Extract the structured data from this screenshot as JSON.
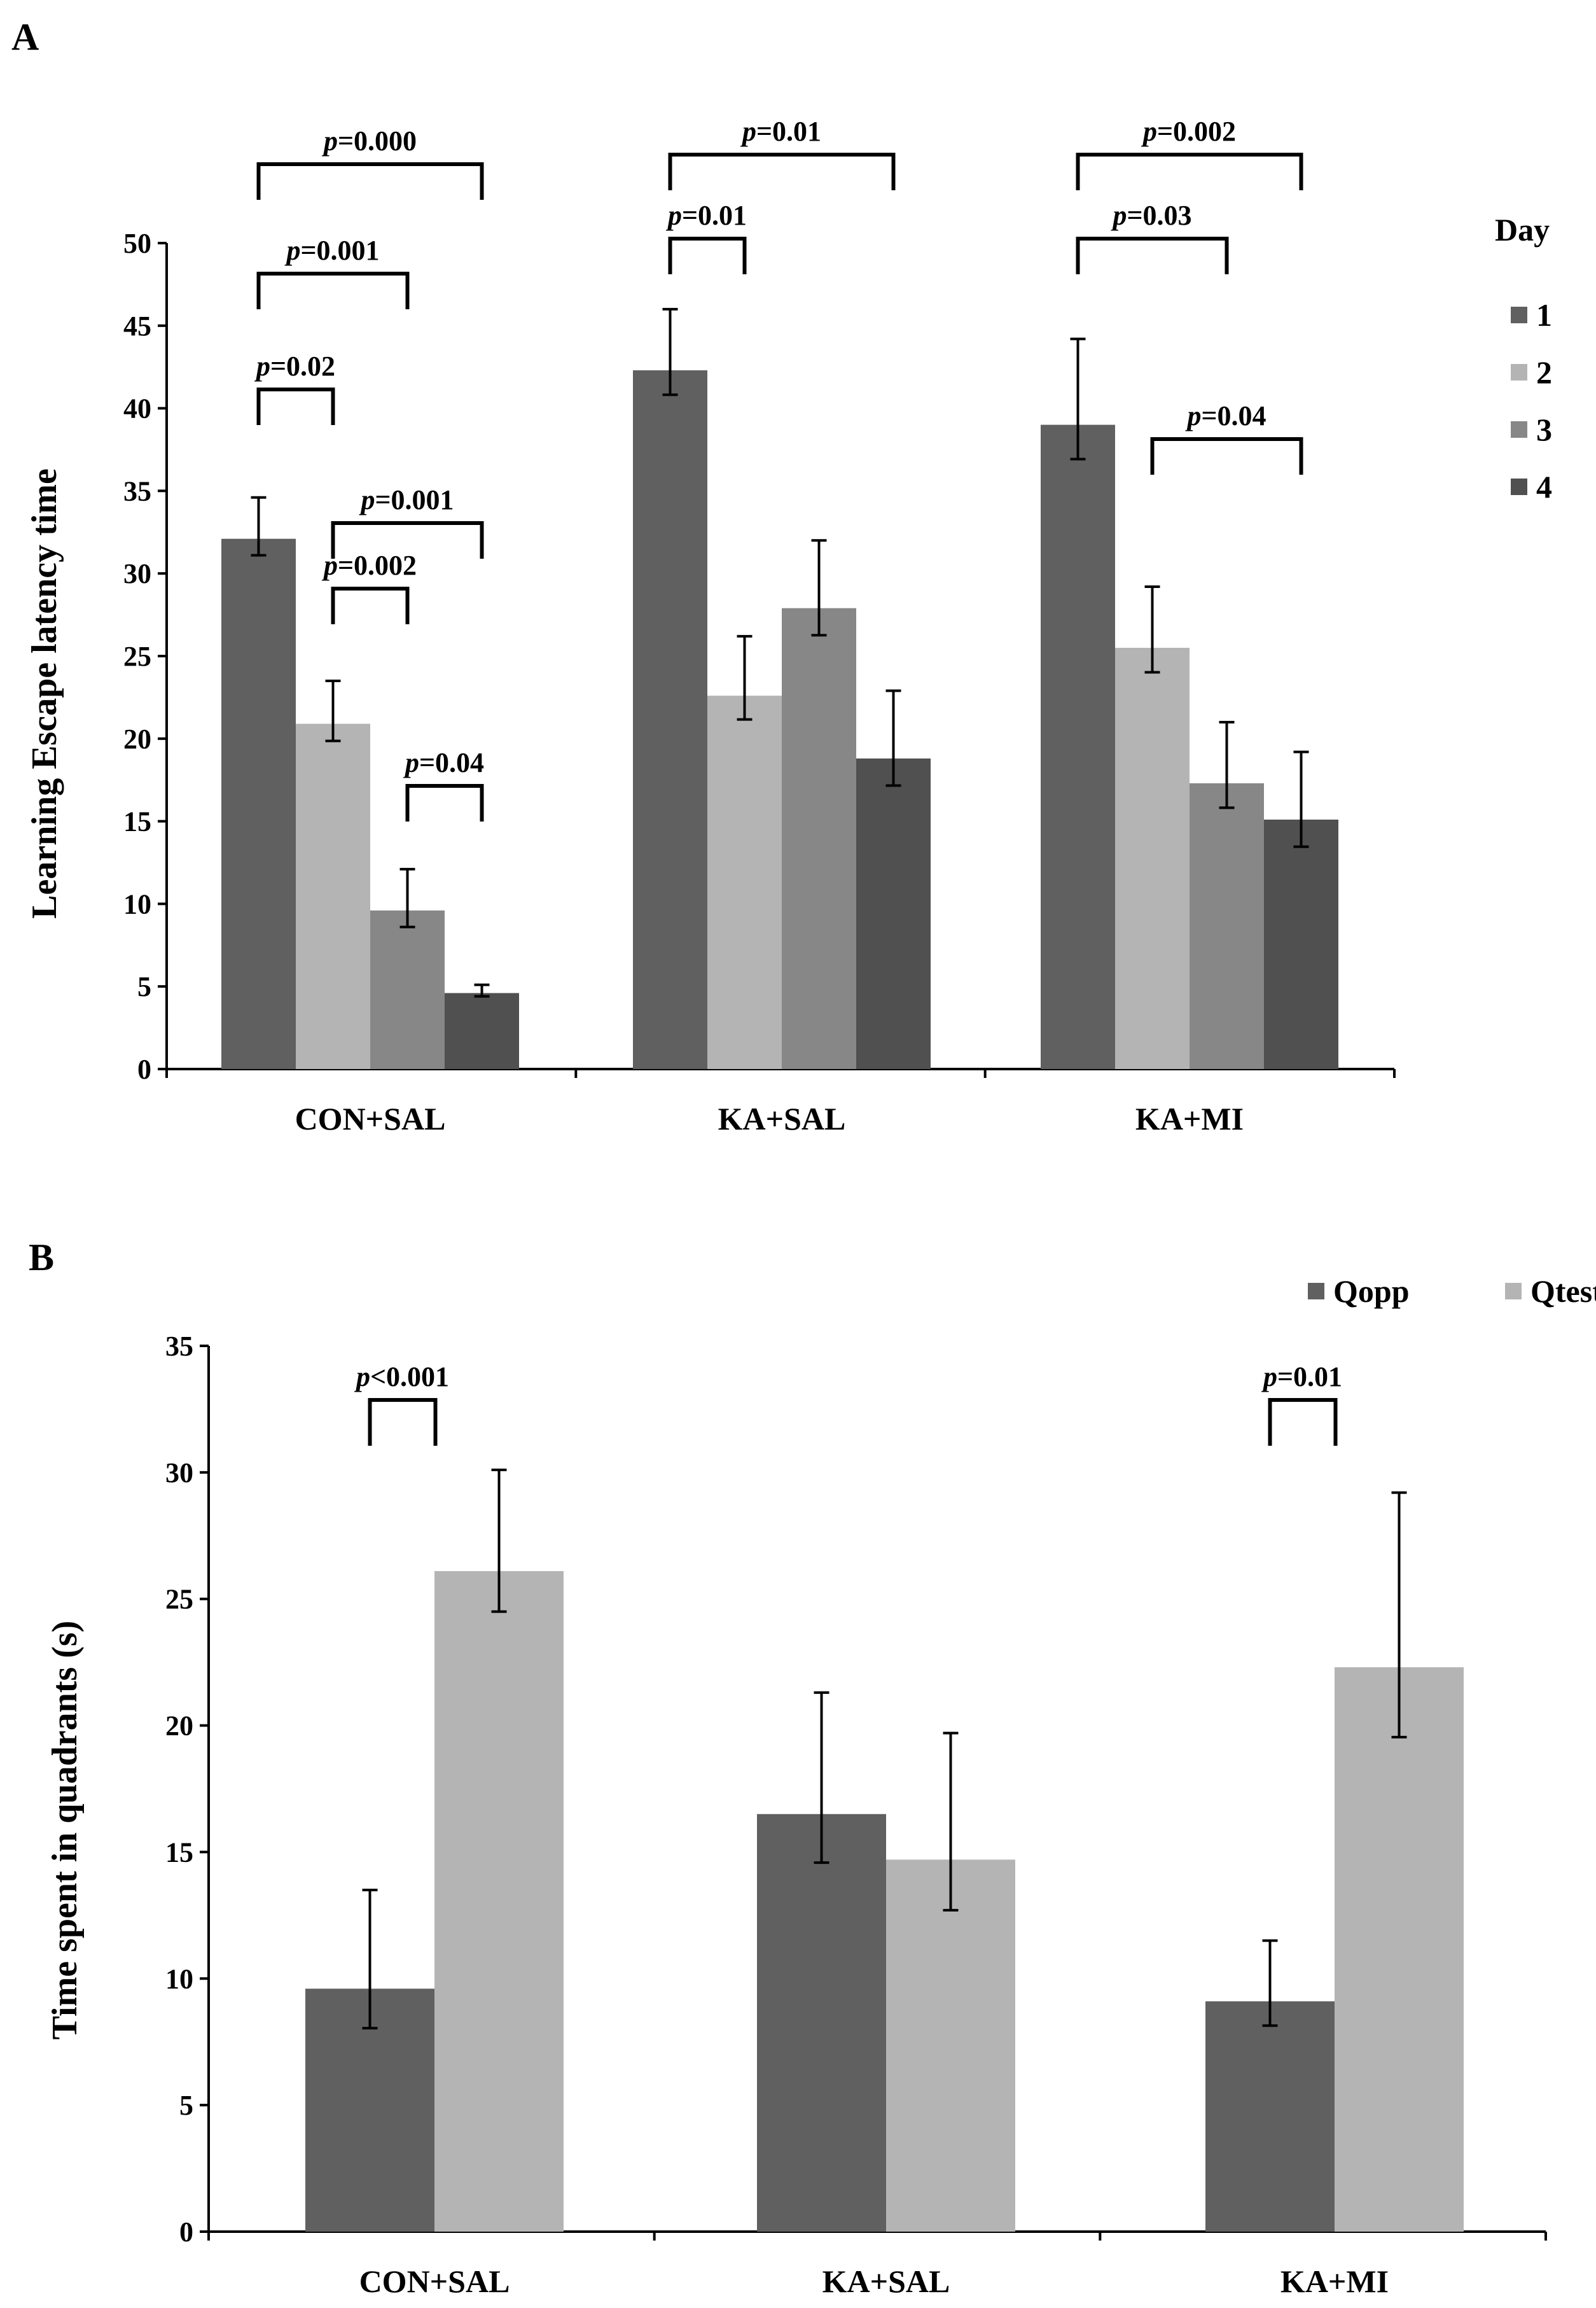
{
  "chart_data": [
    {
      "panel": "A",
      "type": "bar",
      "ylabel": "Learning Escape latency time",
      "xlabel": "",
      "ylim": [
        0,
        50
      ],
      "yticks": [
        0,
        5,
        10,
        15,
        20,
        25,
        30,
        35,
        40,
        45,
        50
      ],
      "categories": [
        "CON+SAL",
        "KA+SAL",
        "KA+MI"
      ],
      "legend_title": "Day",
      "legend_position": "right",
      "series": [
        {
          "name": "1",
          "color": "#606060",
          "values": [
            32.1,
            42.3,
            39.0
          ],
          "errors": [
            2.5,
            3.7,
            5.2
          ]
        },
        {
          "name": "2",
          "color": "#b4b4b4",
          "values": [
            20.9,
            22.6,
            25.5
          ],
          "errors": [
            2.6,
            3.6,
            3.7
          ]
        },
        {
          "name": "3",
          "color": "#878787",
          "values": [
            9.6,
            27.9,
            17.3
          ],
          "errors": [
            2.5,
            4.1,
            3.7
          ]
        },
        {
          "name": "4",
          "color": "#505050",
          "values": [
            4.6,
            18.8,
            15.1
          ],
          "errors": [
            0.5,
            4.1,
            4.1
          ]
        }
      ],
      "annotations": [
        {
          "label_prefix": "p",
          "label_value": "=0.000",
          "category": 0,
          "from_series": 0,
          "to_series": 3
        },
        {
          "label_prefix": "p",
          "label_value": "=0.001",
          "category": 0,
          "from_series": 0,
          "to_series": 2
        },
        {
          "label_prefix": "p",
          "label_value": "=0.02",
          "category": 0,
          "from_series": 0,
          "to_series": 1
        },
        {
          "label_prefix": "p",
          "label_value": "=0.001",
          "category": 0,
          "from_series": 1,
          "to_series": 3
        },
        {
          "label_prefix": "p",
          "label_value": "=0.002",
          "category": 0,
          "from_series": 1,
          "to_series": 2
        },
        {
          "label_prefix": "p",
          "label_value": "=0.04",
          "category": 0,
          "from_series": 2,
          "to_series": 3
        },
        {
          "label_prefix": "p",
          "label_value": "=0.01",
          "category": 1,
          "from_series": 0,
          "to_series": 3
        },
        {
          "label_prefix": "p",
          "label_value": "=0.01",
          "category": 1,
          "from_series": 0,
          "to_series": 1
        },
        {
          "label_prefix": "p",
          "label_value": "=0.002",
          "category": 2,
          "from_series": 0,
          "to_series": 3
        },
        {
          "label_prefix": "p",
          "label_value": "=0.03",
          "category": 2,
          "from_series": 0,
          "to_series": 2
        },
        {
          "label_prefix": "p",
          "label_value": "=0.04",
          "category": 2,
          "from_series": 1,
          "to_series": 3
        }
      ]
    },
    {
      "panel": "B",
      "type": "bar",
      "ylabel": "Time spent in quadrants (s)",
      "xlabel": "",
      "ylim": [
        0,
        35
      ],
      "yticks": [
        0,
        5,
        10,
        15,
        20,
        25,
        30,
        35
      ],
      "categories": [
        "CON+SAL",
        "KA+SAL",
        "KA+MI"
      ],
      "legend_title": "",
      "legend_position": "top-right",
      "series": [
        {
          "name": "Qopp",
          "color": "#606060",
          "values": [
            9.6,
            16.5,
            9.1
          ],
          "errors": [
            3.9,
            4.8,
            2.4
          ]
        },
        {
          "name": "Qtest",
          "color": "#b4b4b4",
          "values": [
            26.1,
            14.7,
            22.3
          ],
          "errors": [
            4.0,
            5.0,
            6.9
          ]
        }
      ],
      "annotations": [
        {
          "label_prefix": "p",
          "label_value": "<0.001",
          "category": 0,
          "from_series": 0,
          "to_series": 1
        },
        {
          "label_prefix": "p",
          "label_value": "=0.01",
          "category": 2,
          "from_series": 0,
          "to_series": 1
        }
      ]
    }
  ]
}
